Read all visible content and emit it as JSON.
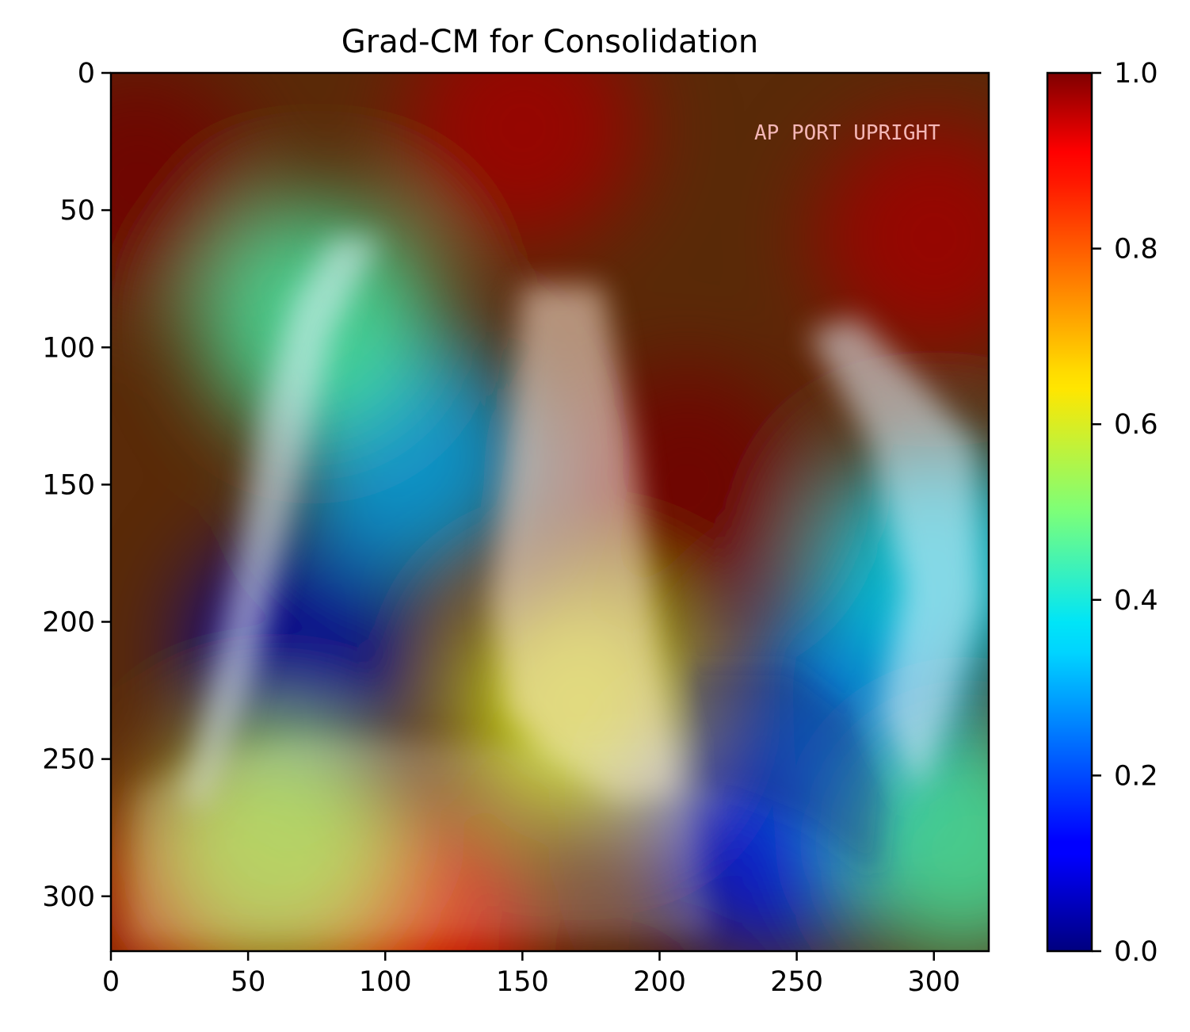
{
  "chart_data": {
    "type": "heatmap",
    "title": "Grad-CM for Consolidation",
    "xlim": [
      0,
      320
    ],
    "ylim": [
      320,
      0
    ],
    "x_ticks": [
      0,
      50,
      100,
      150,
      200,
      250,
      300
    ],
    "y_ticks": [
      0,
      50,
      100,
      150,
      200,
      250,
      300
    ],
    "colormap": "jet",
    "colorbar": {
      "range": [
        0,
        1
      ],
      "ticks": [
        "0.0",
        "0.2",
        "0.4",
        "0.6",
        "0.8",
        "1.0"
      ]
    },
    "image_annotation": "AP PORT UPRIGHT",
    "grid": false,
    "heat_regions": [
      {
        "x": 70,
        "y": 210,
        "value": 0.05
      },
      {
        "x": 110,
        "y": 140,
        "value": 0.3
      },
      {
        "x": 75,
        "y": 90,
        "value": 0.45
      },
      {
        "x": 210,
        "y": 150,
        "value": 1.0
      },
      {
        "x": 150,
        "y": 20,
        "value": 0.95
      },
      {
        "x": 10,
        "y": 40,
        "value": 1.0
      },
      {
        "x": 300,
        "y": 60,
        "value": 0.95
      },
      {
        "x": 240,
        "y": 280,
        "value": 0.15
      },
      {
        "x": 270,
        "y": 230,
        "value": 0.25
      },
      {
        "x": 170,
        "y": 230,
        "value": 0.6
      },
      {
        "x": 110,
        "y": 310,
        "value": 0.85
      },
      {
        "x": 30,
        "y": 300,
        "value": 0.9
      },
      {
        "x": 310,
        "y": 280,
        "value": 0.45
      },
      {
        "x": 300,
        "y": 180,
        "value": 0.35
      },
      {
        "x": 60,
        "y": 280,
        "value": 0.55
      }
    ]
  }
}
